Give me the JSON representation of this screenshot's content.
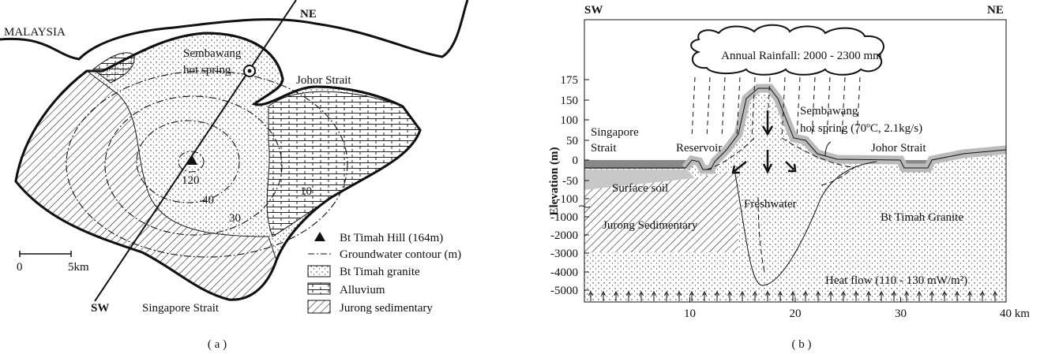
{
  "panel_a": {
    "caption": "( a )",
    "region_label": "MALAYSIA",
    "direction_ne": "NE",
    "direction_sw": "SW",
    "spring_label": [
      "Sembawang",
      "hot spring"
    ],
    "strait_labels": [
      "Johor Strait",
      "Singapore Strait"
    ],
    "contour_labels": [
      "120",
      "40",
      "30",
      "10"
    ],
    "scale_labels": [
      "0",
      "5km"
    ],
    "legend": [
      "Bt Timah Hill (164m)",
      "Groundwater contour (m)",
      "Bt Timah granite",
      "Alluvium",
      "Jurong sedimentary"
    ]
  },
  "panel_b": {
    "caption": "( b )",
    "direction_sw": "SW",
    "direction_ne": "NE",
    "rainfall": "Annual Rainfall: 2000 - 2300 mm",
    "y_axis_label": "Elevation (m)",
    "yticks": [
      "175",
      "150",
      "100",
      "50",
      "0",
      "-50",
      "-100",
      "-1000",
      "-2000",
      "-3000",
      "-4000",
      "-5000"
    ],
    "xticks": [
      "10",
      "20",
      "30",
      "40 km"
    ],
    "labels": {
      "singapore": [
        "Singapore",
        "Strait"
      ],
      "reservoir": "Reservoir",
      "sembawang": [
        "Sembawang",
        "hot spring (70ºC, 2.1kg/s)"
      ],
      "johor": "Johor Strait",
      "surface_soil": "Surface soil",
      "freshwater": "Freshwater",
      "jurong": "Jurong Sedimentary",
      "granite": "Bt Timah Granite",
      "heat_flow": "Heat flow (110 - 130 mW/m²)"
    }
  }
}
